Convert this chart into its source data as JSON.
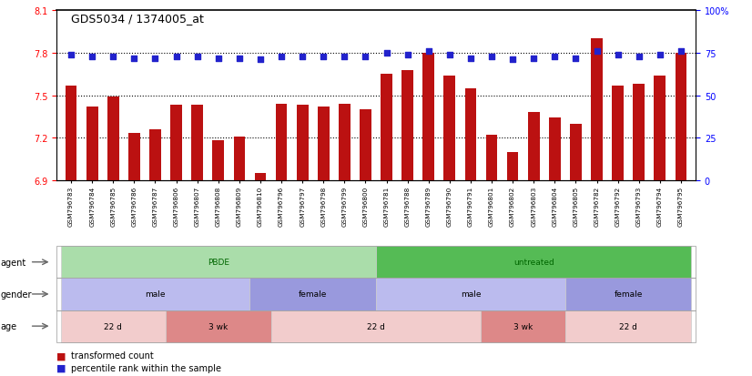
{
  "title": "GDS5034 / 1374005_at",
  "samples": [
    "GSM796783",
    "GSM796784",
    "GSM796785",
    "GSM796786",
    "GSM796787",
    "GSM796806",
    "GSM796807",
    "GSM796808",
    "GSM796809",
    "GSM796810",
    "GSM796796",
    "GSM796797",
    "GSM796798",
    "GSM796799",
    "GSM796800",
    "GSM796781",
    "GSM796788",
    "GSM796789",
    "GSM796790",
    "GSM796791",
    "GSM796801",
    "GSM796802",
    "GSM796803",
    "GSM796804",
    "GSM796805",
    "GSM796782",
    "GSM796792",
    "GSM796793",
    "GSM796794",
    "GSM796795"
  ],
  "bar_values": [
    7.57,
    7.42,
    7.49,
    7.23,
    7.26,
    7.43,
    7.43,
    7.18,
    7.21,
    6.95,
    7.44,
    7.43,
    7.42,
    7.44,
    7.4,
    7.65,
    7.68,
    7.8,
    7.64,
    7.55,
    7.22,
    7.1,
    7.38,
    7.34,
    7.3,
    7.9,
    7.57,
    7.58,
    7.64,
    7.8
  ],
  "blue_values": [
    74,
    73,
    73,
    72,
    72,
    73,
    73,
    72,
    72,
    71,
    73,
    73,
    73,
    73,
    73,
    75,
    74,
    76,
    74,
    72,
    73,
    71,
    72,
    73,
    72,
    76,
    74,
    73,
    74,
    76
  ],
  "ylim_left": [
    6.9,
    8.1
  ],
  "ylim_right": [
    0,
    100
  ],
  "yticks_left": [
    6.9,
    7.2,
    7.5,
    7.8,
    8.1
  ],
  "yticks_right": [
    0,
    25,
    50,
    75,
    100
  ],
  "bar_color": "#bb1111",
  "dot_color": "#2222cc",
  "hline_values": [
    7.2,
    7.5,
    7.8
  ],
  "agent_labels": [
    {
      "label": "PBDE",
      "start": 0,
      "end": 14,
      "color": "#aaddaa"
    },
    {
      "label": "untreated",
      "start": 15,
      "end": 29,
      "color": "#55bb55"
    }
  ],
  "gender_labels": [
    {
      "label": "male",
      "start": 0,
      "end": 8,
      "color": "#bbbbee"
    },
    {
      "label": "female",
      "start": 9,
      "end": 14,
      "color": "#9999dd"
    },
    {
      "label": "male",
      "start": 15,
      "end": 23,
      "color": "#bbbbee"
    },
    {
      "label": "female",
      "start": 24,
      "end": 29,
      "color": "#9999dd"
    }
  ],
  "age_labels": [
    {
      "label": "22 d",
      "start": 0,
      "end": 4,
      "color": "#f2cccc"
    },
    {
      "label": "3 wk",
      "start": 5,
      "end": 9,
      "color": "#dd8888"
    },
    {
      "label": "22 d",
      "start": 10,
      "end": 19,
      "color": "#f2cccc"
    },
    {
      "label": "3 wk",
      "start": 20,
      "end": 23,
      "color": "#dd8888"
    },
    {
      "label": "22 d",
      "start": 24,
      "end": 29,
      "color": "#f2cccc"
    }
  ],
  "background_color": "#ffffff"
}
